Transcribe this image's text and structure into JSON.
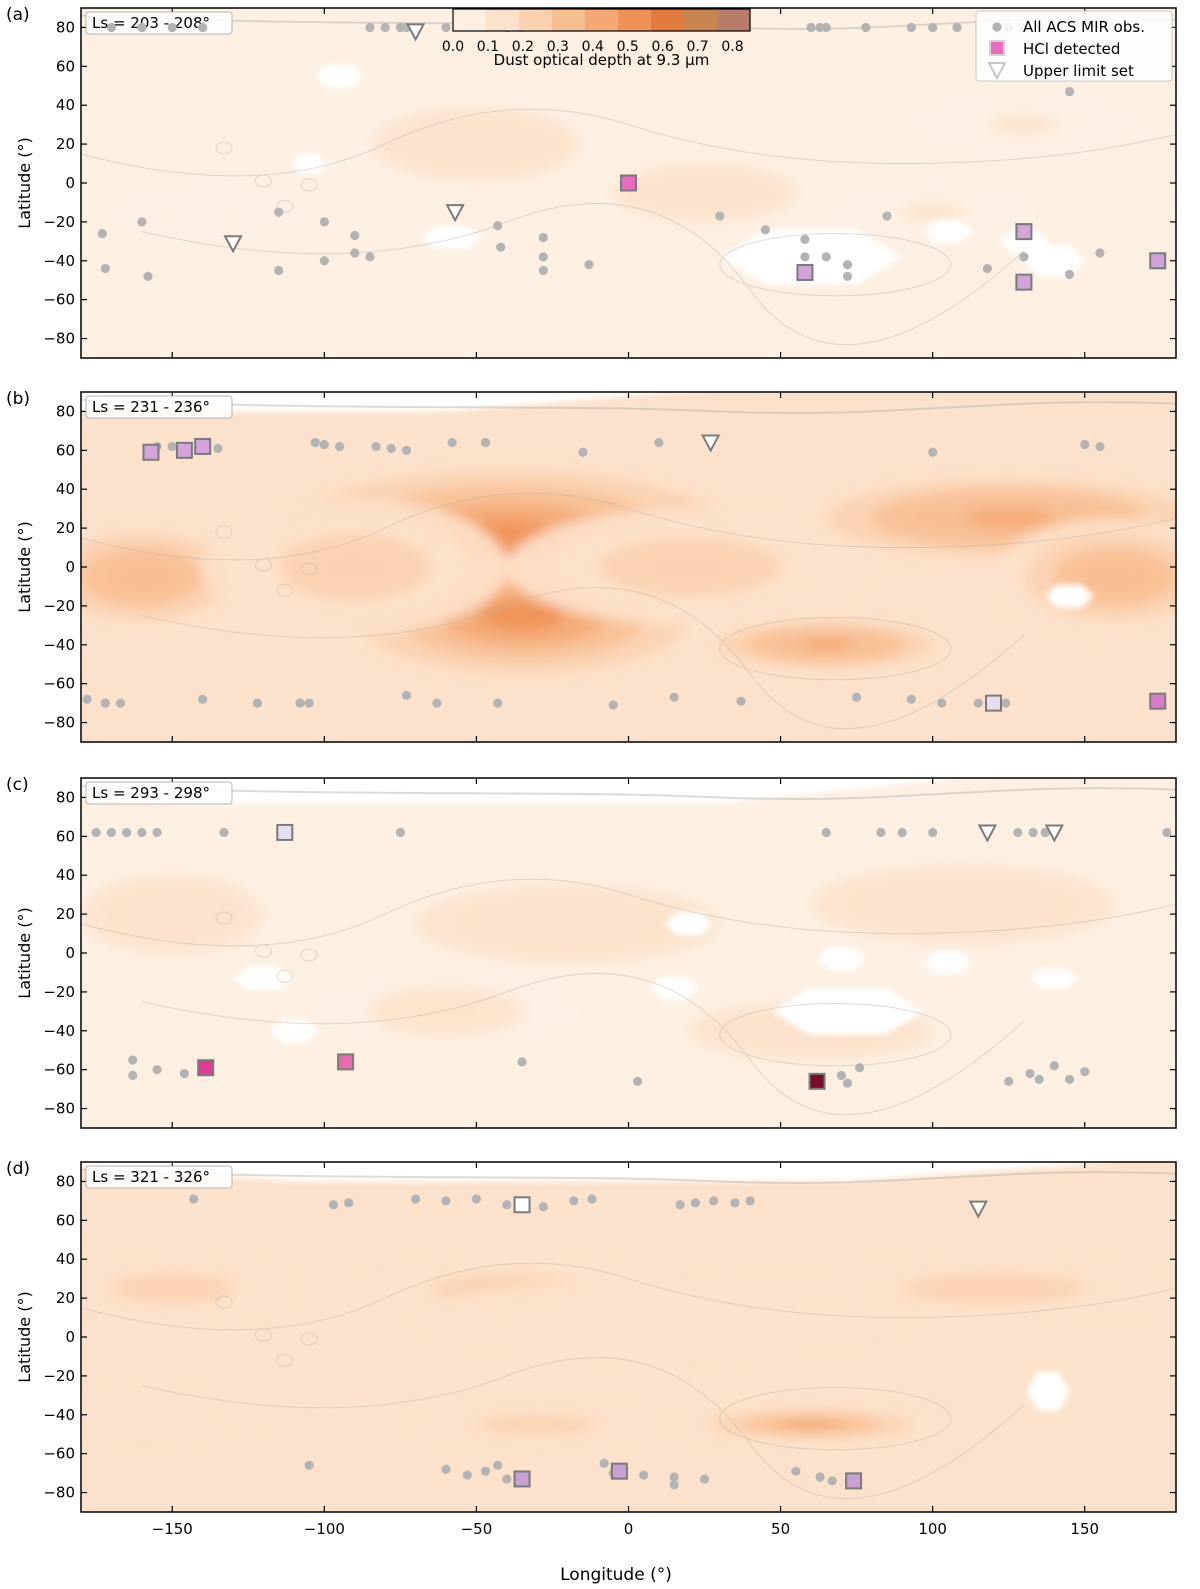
{
  "figure": {
    "colorbar": {
      "label": "Dust optical depth at 9.3 μm",
      "ticks": [
        "0.0",
        "0.1",
        "0.2",
        "0.3",
        "0.4",
        "0.5",
        "0.6",
        "0.7",
        "0.8"
      ],
      "range": [
        0,
        0.85
      ],
      "colors": [
        "#fdf0e3",
        "#fce2cc",
        "#fbd2b0",
        "#f8bf93",
        "#f4a874",
        "#ef9257",
        "#e27b3f",
        "#c8854f",
        "#b87c6a"
      ]
    },
    "legend": {
      "all_obs": "All ACS MIR obs.",
      "hcl": "HCl detected",
      "upper": "Upper limit set"
    },
    "ylabel": "Latitude (°)",
    "xlabel": "Longitude (°)",
    "xticks": [
      "−150",
      "−100",
      "−50",
      "0",
      "50",
      "100",
      "150"
    ],
    "yticks": [
      "80",
      "60",
      "40",
      "20",
      "0",
      "−20",
      "−40",
      "−60",
      "−80"
    ]
  },
  "chart_data": [
    {
      "type": "scatter",
      "panel": "(a)",
      "ls_label": "Ls = 203 - 208°",
      "xlim": [
        -180,
        180
      ],
      "ylim": [
        -90,
        90
      ],
      "all_obs": [
        [
          -170,
          80
        ],
        [
          -160,
          80
        ],
        [
          -150,
          80
        ],
        [
          -140,
          80
        ],
        [
          -85,
          80
        ],
        [
          -80,
          80
        ],
        [
          -75,
          80
        ],
        [
          -73,
          80
        ],
        [
          -60,
          80
        ],
        [
          -40,
          80
        ],
        [
          -35,
          80
        ],
        [
          60,
          80
        ],
        [
          63,
          80
        ],
        [
          65,
          80
        ],
        [
          78,
          80
        ],
        [
          93,
          80
        ],
        [
          100,
          80
        ],
        [
          108,
          80
        ],
        [
          125,
          80
        ],
        [
          130,
          80
        ],
        [
          135,
          80
        ],
        [
          -160,
          -20
        ],
        [
          -158,
          -48
        ],
        [
          -173,
          -26
        ],
        [
          -172,
          -44
        ],
        [
          -115,
          -15
        ],
        [
          -115,
          -45
        ],
        [
          -100,
          -40
        ],
        [
          -100,
          -20
        ],
        [
          -90,
          -27
        ],
        [
          -90,
          -36
        ],
        [
          -85,
          -38
        ],
        [
          -43,
          -22
        ],
        [
          -42,
          -33
        ],
        [
          -28,
          -28
        ],
        [
          -28,
          -38
        ],
        [
          -28,
          -45
        ],
        [
          -13,
          -42
        ],
        [
          30,
          -17
        ],
        [
          45,
          -24
        ],
        [
          58,
          -29
        ],
        [
          58,
          -38
        ],
        [
          65,
          -38
        ],
        [
          72,
          -42
        ],
        [
          72,
          -48
        ],
        [
          85,
          -17
        ],
        [
          118,
          -44
        ],
        [
          130,
          -38
        ],
        [
          145,
          47
        ],
        [
          145,
          -47
        ],
        [
          155,
          -36
        ]
      ],
      "hcl": [
        [
          0,
          0,
          "#e66cc0"
        ],
        [
          58,
          -46,
          "#d3a3da"
        ],
        [
          130,
          -25,
          "#d3a3da"
        ],
        [
          130,
          -51,
          "#d3a3da"
        ],
        [
          174,
          -40,
          "#d0a0d8"
        ]
      ],
      "upper": [
        [
          -70,
          78
        ],
        [
          -57,
          -15
        ],
        [
          -130,
          -31
        ]
      ],
      "dust_blobs": [
        [
          -50,
          20,
          0.16,
          45,
          25
        ],
        [
          25,
          -5,
          0.12,
          40,
          20
        ],
        [
          130,
          30,
          0.1,
          45,
          20
        ],
        [
          -140,
          -15,
          0.08,
          35,
          20
        ],
        [
          100,
          -15,
          0.1,
          40,
          20
        ],
        [
          60,
          -40,
          0.1,
          30,
          15
        ]
      ],
      "dust_base": 0.07,
      "white_areas": [
        [
          60,
          -38,
          30,
          14
        ],
        [
          -95,
          55,
          8,
          6
        ],
        [
          -105,
          10,
          6,
          5
        ],
        [
          -58,
          -28,
          10,
          6
        ],
        [
          140,
          -40,
          10,
          8
        ],
        [
          130,
          -30,
          8,
          6
        ],
        [
          105,
          -25,
          8,
          6
        ]
      ]
    },
    {
      "type": "scatter",
      "panel": "(b)",
      "ls_label": "Ls = 231 - 236°",
      "xlim": [
        -180,
        180
      ],
      "ylim": [
        -90,
        90
      ],
      "all_obs": [
        [
          -155,
          62
        ],
        [
          -150,
          62
        ],
        [
          -140,
          61
        ],
        [
          -135,
          61
        ],
        [
          -103,
          64
        ],
        [
          -100,
          63
        ],
        [
          -95,
          62
        ],
        [
          -83,
          62
        ],
        [
          -78,
          61
        ],
        [
          -73,
          60
        ],
        [
          -58,
          64
        ],
        [
          -47,
          64
        ],
        [
          -15,
          59
        ],
        [
          10,
          64
        ],
        [
          100,
          59
        ],
        [
          150,
          63
        ],
        [
          155,
          62
        ],
        [
          -178,
          -68
        ],
        [
          -172,
          -70
        ],
        [
          -167,
          -70
        ],
        [
          -140,
          -68
        ],
        [
          -122,
          -70
        ],
        [
          -108,
          -70
        ],
        [
          -105,
          -70
        ],
        [
          -73,
          -66
        ],
        [
          -63,
          -70
        ],
        [
          -43,
          -70
        ],
        [
          -5,
          -71
        ],
        [
          15,
          -67
        ],
        [
          37,
          -69
        ],
        [
          75,
          -67
        ],
        [
          93,
          -68
        ],
        [
          103,
          -70
        ],
        [
          115,
          -70
        ],
        [
          124,
          -70
        ]
      ],
      "hcl": [
        [
          -157,
          59,
          "#d3a3da"
        ],
        [
          -146,
          60,
          "#d3a3da"
        ],
        [
          -140,
          62,
          "#d3a3da"
        ],
        [
          120,
          -70,
          "#e6ddf0"
        ],
        [
          174,
          -69,
          "#d77cc6"
        ]
      ],
      "upper": [
        [
          27,
          64
        ]
      ],
      "dust_blobs": [
        [
          -40,
          15,
          0.55,
          75,
          35
        ],
        [
          -35,
          -25,
          0.5,
          55,
          30
        ],
        [
          125,
          25,
          0.45,
          60,
          20
        ],
        [
          -160,
          -5,
          0.35,
          40,
          30
        ],
        [
          160,
          -5,
          0.35,
          40,
          30
        ],
        [
          65,
          -40,
          0.45,
          35,
          12
        ],
        [
          20,
          0,
          0.22,
          60,
          30
        ],
        [
          -90,
          0,
          0.22,
          50,
          35
        ]
      ],
      "dust_base": 0.12,
      "white_areas": [
        [
          -150,
          92,
          180,
          12
        ],
        [
          145,
          -15,
          8,
          6
        ]
      ]
    },
    {
      "type": "scatter",
      "panel": "(c)",
      "ls_label": "Ls = 293 - 298°",
      "xlim": [
        -180,
        180
      ],
      "ylim": [
        -90,
        90
      ],
      "all_obs": [
        [
          -175,
          62
        ],
        [
          -170,
          62
        ],
        [
          -165,
          62
        ],
        [
          -160,
          62
        ],
        [
          -155,
          62
        ],
        [
          -133,
          62
        ],
        [
          -75,
          62
        ],
        [
          65,
          62
        ],
        [
          83,
          62
        ],
        [
          90,
          62
        ],
        [
          100,
          62
        ],
        [
          128,
          62
        ],
        [
          133,
          62
        ],
        [
          137,
          62
        ],
        [
          177,
          62
        ],
        [
          -163,
          -55
        ],
        [
          -163,
          -63
        ],
        [
          -155,
          -60
        ],
        [
          -146,
          -62
        ],
        [
          -35,
          -56
        ],
        [
          3,
          -66
        ],
        [
          70,
          -63
        ],
        [
          72,
          -67
        ],
        [
          76,
          -59
        ],
        [
          125,
          -66
        ],
        [
          132,
          -62
        ],
        [
          135,
          -65
        ],
        [
          140,
          -58
        ],
        [
          145,
          -65
        ],
        [
          150,
          -61
        ]
      ],
      "hcl": [
        [
          -113,
          62,
          "#e6ddf0"
        ],
        [
          -139,
          -59,
          "#e13d96"
        ],
        [
          -93,
          -56,
          "#e66cb0"
        ],
        [
          62,
          -66,
          "#7a0c29"
        ]
      ],
      "upper": [
        [
          118,
          62
        ],
        [
          140,
          62
        ]
      ],
      "dust_blobs": [
        [
          -20,
          15,
          0.18,
          50,
          20
        ],
        [
          110,
          25,
          0.18,
          50,
          20
        ],
        [
          -150,
          20,
          0.15,
          30,
          20
        ],
        [
          -60,
          -30,
          0.1,
          50,
          25
        ],
        [
          60,
          -40,
          0.14,
          40,
          15
        ]
      ],
      "dust_base": 0.08,
      "white_areas": [
        [
          -60,
          92,
          180,
          15
        ],
        [
          72,
          -30,
          25,
          12
        ],
        [
          15,
          -18,
          8,
          6
        ],
        [
          70,
          -3,
          8,
          6
        ],
        [
          -110,
          -40,
          8,
          6
        ],
        [
          -120,
          -13,
          10,
          6
        ],
        [
          105,
          -5,
          8,
          6
        ],
        [
          140,
          -13,
          8,
          5
        ],
        [
          20,
          15,
          8,
          6
        ]
      ]
    },
    {
      "type": "scatter",
      "panel": "(d)",
      "ls_label": "Ls = 321 - 326°",
      "xlim": [
        -180,
        180
      ],
      "ylim": [
        -90,
        90
      ],
      "all_obs": [
        [
          -143,
          71
        ],
        [
          -97,
          68
        ],
        [
          -92,
          69
        ],
        [
          -70,
          71
        ],
        [
          -60,
          70
        ],
        [
          -50,
          71
        ],
        [
          -40,
          68
        ],
        [
          -28,
          67
        ],
        [
          -18,
          70
        ],
        [
          -12,
          71
        ],
        [
          17,
          68
        ],
        [
          22,
          69
        ],
        [
          28,
          70
        ],
        [
          35,
          69
        ],
        [
          40,
          70
        ],
        [
          -105,
          -66
        ],
        [
          -60,
          -68
        ],
        [
          -53,
          -71
        ],
        [
          -47,
          -69
        ],
        [
          -43,
          -66
        ],
        [
          -40,
          -73
        ],
        [
          -8,
          -65
        ],
        [
          -5,
          -70
        ],
        [
          5,
          -71
        ],
        [
          15,
          -72
        ],
        [
          15,
          -76
        ],
        [
          25,
          -73
        ],
        [
          55,
          -69
        ],
        [
          63,
          -72
        ],
        [
          67,
          -74
        ]
      ],
      "hcl": [
        [
          -35,
          68,
          "#ffffff"
        ],
        [
          -35,
          -73,
          "#c9a0d3"
        ],
        [
          -3,
          -69,
          "#c9a0d3"
        ],
        [
          74,
          -74,
          "#c9a0d3"
        ]
      ],
      "upper": [
        [
          115,
          66
        ]
      ],
      "dust_blobs": [
        [
          60,
          -45,
          0.45,
          45,
          10
        ],
        [
          -40,
          25,
          0.25,
          50,
          15
        ],
        [
          120,
          25,
          0.22,
          60,
          15
        ],
        [
          -150,
          25,
          0.22,
          40,
          15
        ],
        [
          -30,
          -45,
          0.25,
          40,
          10
        ],
        [
          10,
          10,
          0.12,
          80,
          20
        ],
        [
          -160,
          -40,
          0.18,
          40,
          12
        ]
      ],
      "dust_base": 0.1,
      "white_areas": [
        [
          -20,
          90,
          180,
          10
        ],
        [
          138,
          -28,
          7,
          10
        ]
      ]
    }
  ]
}
